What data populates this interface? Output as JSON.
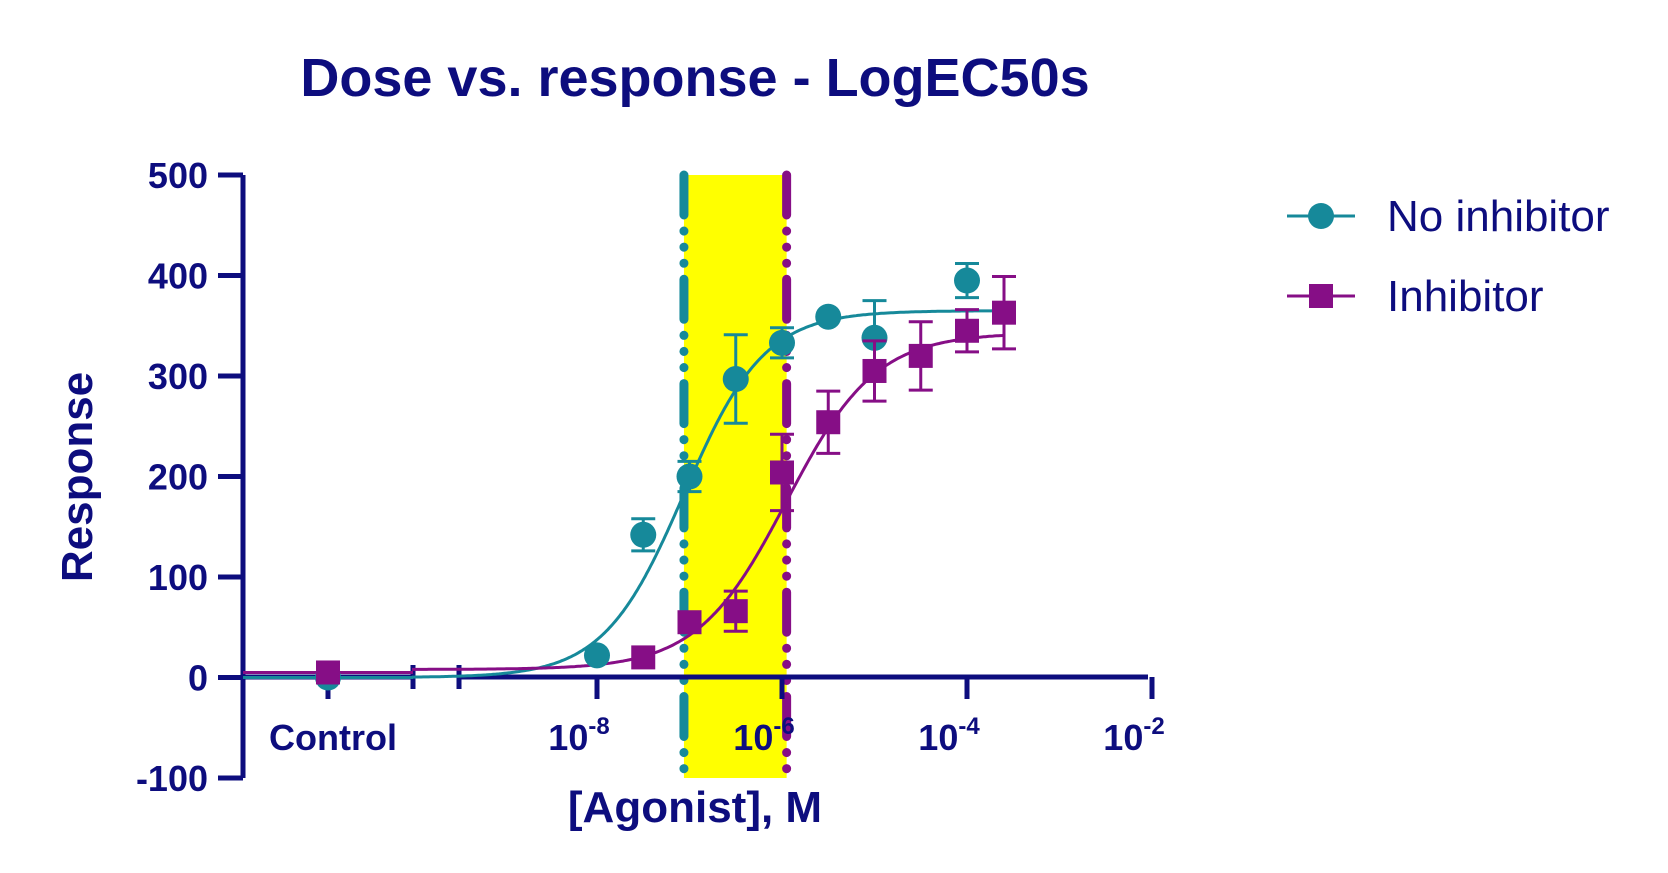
{
  "chart_data": {
    "type": "scatter",
    "title": "Dose vs. response - LogEC50s",
    "xlabel": "[Agonist], M",
    "ylabel": "Response",
    "ylim": [
      -100,
      500
    ],
    "yticks": [
      "-100",
      "0",
      "100",
      "200",
      "300",
      "400",
      "500"
    ],
    "ytick_values": [
      -100,
      0,
      100,
      200,
      300,
      400,
      500
    ],
    "x_scale": "log10",
    "xlim_log": [
      -10,
      -2
    ],
    "xticks": [
      {
        "log": -8,
        "base": "10",
        "exp": "-8"
      },
      {
        "log": -6,
        "base": "10",
        "exp": "-6"
      },
      {
        "log": -4,
        "base": "10",
        "exp": "-4"
      },
      {
        "log": -2,
        "base": "10",
        "exp": "-2"
      }
    ],
    "control_label": "Control",
    "series": [
      {
        "name": "No inhibitor",
        "color": "#16899a",
        "marker": "circle",
        "control": {
          "y": 0,
          "err": 0
        },
        "points": [
          {
            "logx": -8.0,
            "y": 22,
            "err": 0
          },
          {
            "logx": -7.5,
            "y": 142,
            "err": 16
          },
          {
            "logx": -7.0,
            "y": 200,
            "err": 15
          },
          {
            "logx": -6.5,
            "y": 297,
            "err": 44
          },
          {
            "logx": -6.0,
            "y": 333,
            "err": 15
          },
          {
            "logx": -5.5,
            "y": 359,
            "err": 0
          },
          {
            "logx": -5.0,
            "y": 338,
            "err": 37
          },
          {
            "logx": -4.0,
            "y": 395,
            "err": 17
          }
        ],
        "fit": {
          "bottom": 0,
          "top": 365,
          "logec50": -7.06,
          "hill": 1.0
        },
        "logec50_line": -7.06
      },
      {
        "name": "Inhibitor",
        "color": "#860e86",
        "marker": "square",
        "control": {
          "y": 5,
          "err": 0
        },
        "points": [
          {
            "logx": -7.5,
            "y": 20,
            "err": 0
          },
          {
            "logx": -7.0,
            "y": 55,
            "err": 0
          },
          {
            "logx": -6.5,
            "y": 66,
            "err": 20
          },
          {
            "logx": -6.0,
            "y": 204,
            "err": 38
          },
          {
            "logx": -5.5,
            "y": 254,
            "err": 31
          },
          {
            "logx": -5.0,
            "y": 305,
            "err": 30
          },
          {
            "logx": -4.5,
            "y": 320,
            "err": 34
          },
          {
            "logx": -4.0,
            "y": 345,
            "err": 21
          },
          {
            "logx": -3.6,
            "y": 363,
            "err": 36
          }
        ],
        "fit": {
          "bottom": 8,
          "top": 343,
          "logec50": -5.95,
          "hill": 0.9
        },
        "logec50_line": -5.95
      }
    ],
    "highlight": {
      "from_log": -7.06,
      "to_log": -5.95,
      "color": "#ffff00"
    },
    "axis_color": "#0d0d7e",
    "legend_position": "top-right"
  }
}
